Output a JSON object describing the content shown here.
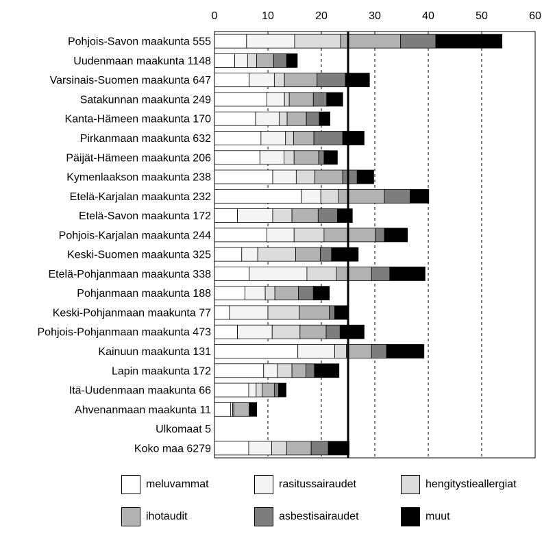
{
  "chart_data": {
    "type": "bar",
    "orientation": "horizontal",
    "stacked": true,
    "title": "",
    "xlabel": "",
    "ylabel": "",
    "xlim": [
      0,
      60
    ],
    "x_ticks": [
      "0",
      "10",
      "20",
      "30",
      "40",
      "50",
      "60"
    ],
    "dashed_gridlines_at": [
      10,
      20,
      30,
      40,
      50
    ],
    "reference_line": 25,
    "legend_position": "bottom",
    "categories": [
      "Pohjois-Savon maakunta 555",
      "Uudenmaan maakunta 1148",
      "Varsinais-Suomen maakunta 647",
      "Satakunnan maakunta  249",
      "Kanta-Hämeen maakunta 170",
      "Pirkanmaan maakunta 632",
      "Päijät-Hämeen maakunta 206",
      "Kymenlaakson maakunta 238",
      "Etelä-Karjalan maakunta 232",
      "Etelä-Savon maakunta 172",
      "Pohjois-Karjalan maakunta 244",
      "Keski-Suomen maakunta 325",
      "Etelä-Pohjanmaan maakunta 338",
      "Pohjanmaan maakunta 188",
      "Keski-Pohjanmaan maakunta 77",
      "Pohjois-Pohjanmaan maakunta 473",
      "Kainuun maakunta 131",
      "Lapin maakunta 172",
      "Itä-Uudenmaan maakunta 66",
      "Ahvenanmaan maakunta 11",
      "Ulkomaat 5",
      "Koko maa 6279"
    ],
    "series": [
      {
        "name": "meluvammat",
        "color": "#ffffff",
        "values": [
          6.0,
          3.8,
          6.5,
          9.8,
          7.7,
          8.7,
          8.5,
          10.9,
          16.3,
          4.3,
          9.8,
          5.1,
          6.5,
          5.7,
          2.8,
          4.3,
          15.6,
          9.2,
          6.4,
          3.0,
          0,
          6.4
        ]
      },
      {
        "name": "rasitussairaudet",
        "color": "#f4f4f4",
        "values": [
          9.0,
          2.4,
          4.7,
          3.3,
          4.4,
          4.6,
          4.5,
          4.4,
          3.6,
          6.6,
          5.1,
          3.0,
          10.8,
          3.8,
          7.2,
          6.5,
          6.9,
          2.6,
          1.4,
          0.4,
          0,
          4.3
        ]
      },
      {
        "name": "hengitystieallergiat",
        "color": "#dcdcdc",
        "values": [
          8.6,
          1.7,
          1.9,
          0.9,
          1.5,
          1.5,
          1.9,
          3.5,
          3.3,
          3.6,
          5.6,
          7.1,
          5.5,
          1.8,
          5.9,
          5.2,
          2.2,
          2.7,
          1.1,
          0.2,
          0,
          2.8
        ]
      },
      {
        "name": "ihotaudit",
        "color": "#b2b2b2",
        "values": [
          11.2,
          3.2,
          6.1,
          4.5,
          3.6,
          3.8,
          4.6,
          5.2,
          8.6,
          4.9,
          9.6,
          4.6,
          6.6,
          4.4,
          5.6,
          4.9,
          4.7,
          2.6,
          2.3,
          2.9,
          0,
          4.6
        ]
      },
      {
        "name": "asbestisairaudet",
        "color": "#7d7d7d",
        "values": [
          6.6,
          2.4,
          5.3,
          2.5,
          2.4,
          5.4,
          1.0,
          2.7,
          4.8,
          3.6,
          1.7,
          2.1,
          3.4,
          2.8,
          1.0,
          2.6,
          2.8,
          1.6,
          0.8,
          0,
          0,
          3.2
        ]
      },
      {
        "name": "muut",
        "color": "#000000",
        "values": [
          12.4,
          2.0,
          4.5,
          3.0,
          2.0,
          4.0,
          2.5,
          3.1,
          3.5,
          2.8,
          4.3,
          5.0,
          6.6,
          3.0,
          2.5,
          4.5,
          7.0,
          4.6,
          1.4,
          1.4,
          0,
          3.9
        ]
      }
    ]
  }
}
